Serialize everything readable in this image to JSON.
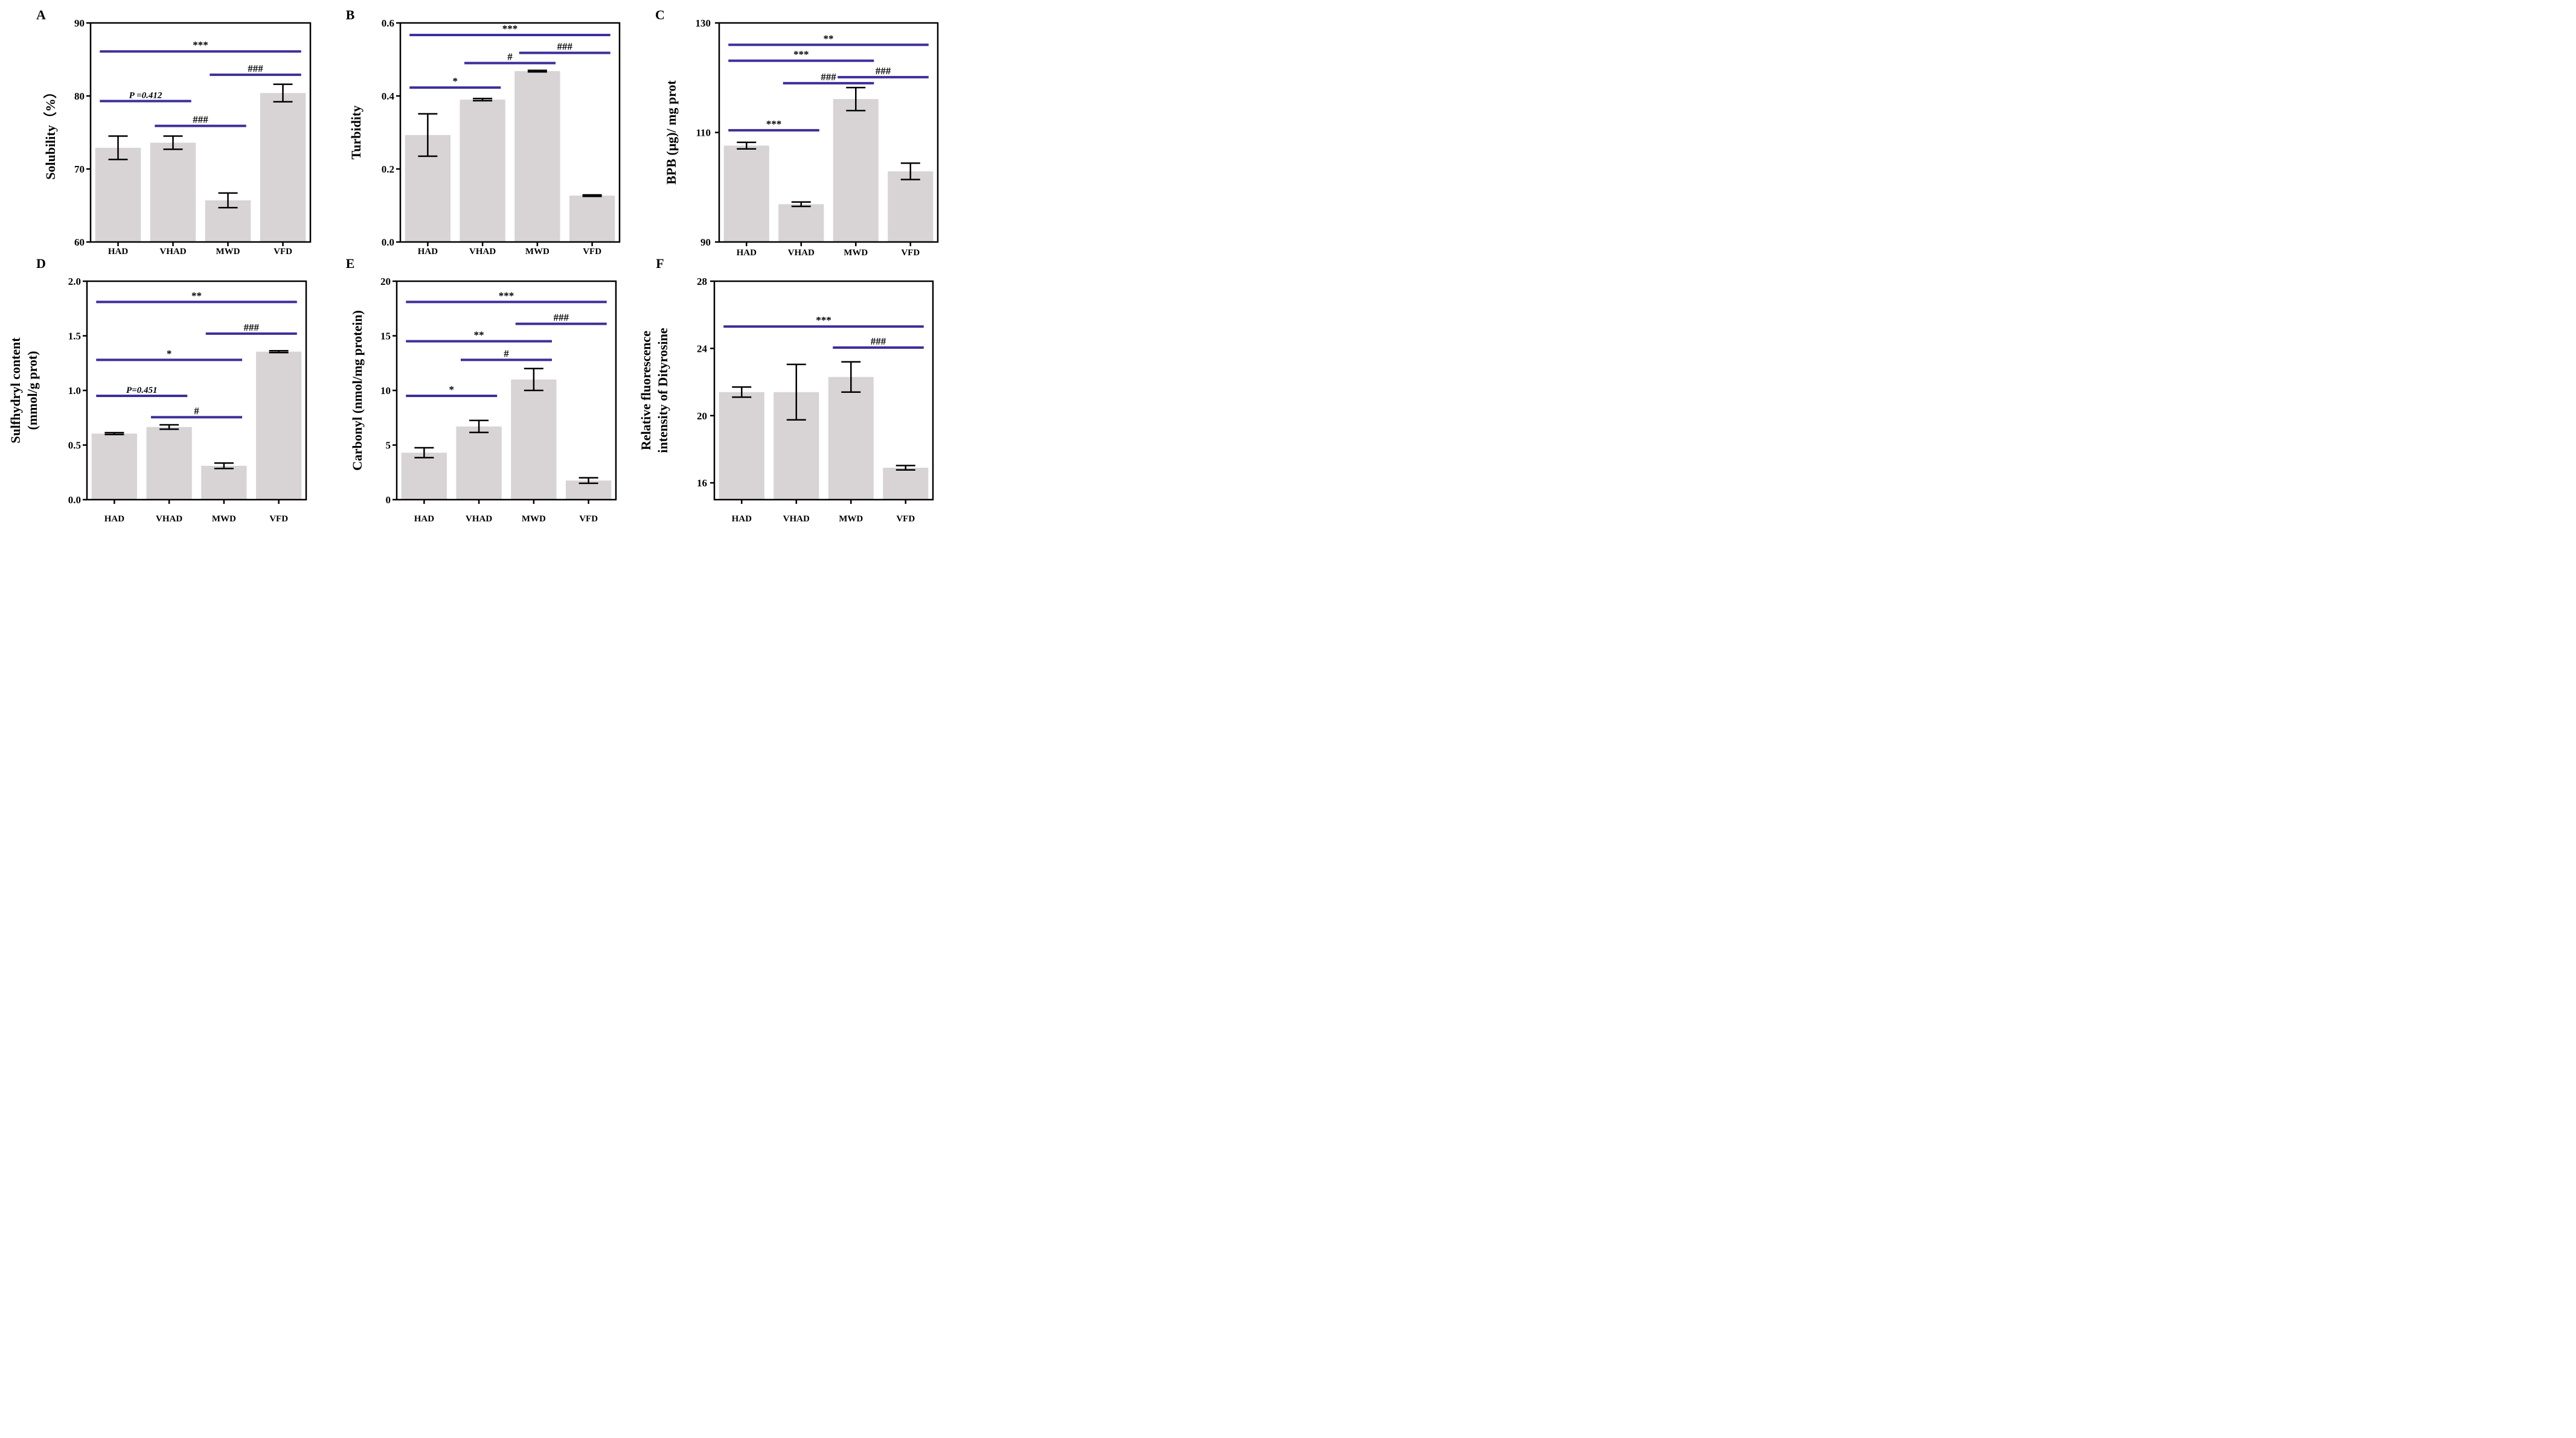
{
  "figure": {
    "bar_color": "#d8d4d6",
    "sig_color": "#3d2f9a",
    "axis_color": "#000000"
  },
  "chart_data": [
    {
      "type": "bar",
      "panel": "A",
      "ylabel": [
        "Solubility（%）"
      ],
      "categories": [
        "HAD",
        "VHAD",
        "MWD",
        "VFD"
      ],
      "values": [
        72.9,
        73.6,
        65.7,
        80.4
      ],
      "errors": [
        1.6,
        0.9,
        1.0,
        1.2
      ],
      "ylim": [
        60,
        90
      ],
      "yticks": [
        60,
        70,
        80,
        90
      ],
      "tick_labels": [
        "60",
        "70",
        "80",
        "90"
      ],
      "significance": [
        {
          "from": 0,
          "to": 3,
          "level": 86.1,
          "label": "***"
        },
        {
          "from": 2,
          "to": 3,
          "level": 82.9,
          "label": "###"
        },
        {
          "from": 0,
          "to": 1,
          "level": 79.3,
          "label": "P =0.412",
          "italic": true
        },
        {
          "from": 1,
          "to": 2,
          "level": 75.9,
          "label": "###"
        }
      ]
    },
    {
      "type": "bar",
      "panel": "B",
      "ylabel": [
        "Turbidity"
      ],
      "categories": [
        "HAD",
        "VHAD",
        "MWD",
        "VFD"
      ],
      "values": [
        0.293,
        0.39,
        0.468,
        0.127
      ],
      "errors": [
        0.058,
        0.003,
        0.002,
        0.002
      ],
      "ylim": [
        0,
        0.6
      ],
      "yticks": [
        0,
        0.2,
        0.4,
        0.6
      ],
      "tick_labels": [
        "0.0",
        "0.2",
        "0.4",
        "0.6"
      ],
      "significance": [
        {
          "from": 0,
          "to": 3,
          "level": 0.567,
          "label": "***"
        },
        {
          "from": 2,
          "to": 3,
          "level": 0.518,
          "label": "###"
        },
        {
          "from": 1,
          "to": 2,
          "level": 0.49,
          "label": "#"
        },
        {
          "from": 0,
          "to": 1,
          "level": 0.423,
          "label": "*"
        }
      ]
    },
    {
      "type": "bar",
      "panel": "C",
      "ylabel": [
        "BPB (μg)/ mg prot"
      ],
      "categories": [
        "HAD",
        "VHAD",
        "MWD",
        "VFD"
      ],
      "values": [
        107.6,
        96.9,
        116.1,
        102.9
      ],
      "errors": [
        0.6,
        0.4,
        2.1,
        1.5
      ],
      "ylim": [
        90,
        130
      ],
      "yticks": [
        90,
        110,
        130
      ],
      "tick_labels": [
        "90",
        "110",
        "130"
      ],
      "significance": [
        {
          "from": 0,
          "to": 3,
          "level": 126.0,
          "label": "**"
        },
        {
          "from": 0,
          "to": 2,
          "level": 123.1,
          "label": "***"
        },
        {
          "from": 2,
          "to": 3,
          "level": 120.1,
          "label": "###"
        },
        {
          "from": 1,
          "to": 2,
          "level": 119.0,
          "label": "###"
        },
        {
          "from": 0,
          "to": 1,
          "level": 110.4,
          "label": "***"
        }
      ]
    },
    {
      "type": "bar",
      "panel": "D",
      "ylabel": [
        "Sulfhydryl content",
        "(mmol/g prot)"
      ],
      "categories": [
        "HAD",
        "VHAD",
        "MWD",
        "VFD"
      ],
      "values": [
        0.605,
        0.665,
        0.31,
        1.355
      ],
      "errors": [
        0.008,
        0.02,
        0.025,
        0.008
      ],
      "ylim": [
        0,
        2.0
      ],
      "yticks": [
        0,
        0.5,
        1.0,
        1.5,
        2.0
      ],
      "tick_labels": [
        "0.0",
        "0.5",
        "1.0",
        "1.5",
        "2.0"
      ],
      "significance": [
        {
          "from": 0,
          "to": 3,
          "level": 1.81,
          "label": "**"
        },
        {
          "from": 2,
          "to": 3,
          "level": 1.52,
          "label": "###"
        },
        {
          "from": 0,
          "to": 2,
          "level": 1.28,
          "label": "*"
        },
        {
          "from": 0,
          "to": 1,
          "level": 0.95,
          "label": "P=0.451",
          "italic": true
        },
        {
          "from": 1,
          "to": 2,
          "level": 0.755,
          "label": "#"
        }
      ]
    },
    {
      "type": "bar",
      "panel": "E",
      "ylabel": [
        "Carbonyl (nmol/mg protein)"
      ],
      "categories": [
        "HAD",
        "VHAD",
        "MWD",
        "VFD"
      ],
      "values": [
        4.3,
        6.7,
        11.0,
        1.75
      ],
      "errors": [
        0.45,
        0.55,
        1.0,
        0.25
      ],
      "ylim": [
        0,
        20
      ],
      "yticks": [
        0,
        5,
        10,
        15,
        20
      ],
      "tick_labels": [
        "0",
        "5",
        "10",
        "15",
        "20"
      ],
      "significance": [
        {
          "from": 0,
          "to": 3,
          "level": 18.1,
          "label": "***"
        },
        {
          "from": 2,
          "to": 3,
          "level": 16.1,
          "label": "###"
        },
        {
          "from": 0,
          "to": 2,
          "level": 14.5,
          "label": "**"
        },
        {
          "from": 1,
          "to": 2,
          "level": 12.8,
          "label": "#"
        },
        {
          "from": 0,
          "to": 1,
          "level": 9.5,
          "label": "*"
        }
      ]
    },
    {
      "type": "bar",
      "panel": "F",
      "ylabel": [
        "Relative fluorescence",
        "intensity of Dityrosine"
      ],
      "categories": [
        "HAD",
        "VHAD",
        "MWD",
        "VFD"
      ],
      "values": [
        21.4,
        21.4,
        22.3,
        16.9
      ],
      "errors": [
        0.3,
        1.65,
        0.9,
        0.13
      ],
      "ylim": [
        15,
        28
      ],
      "yticks": [
        16,
        20,
        24,
        28
      ],
      "tick_labels": [
        "16",
        "20",
        "24",
        "28"
      ],
      "significance": [
        {
          "from": 0,
          "to": 3,
          "level": 25.3,
          "label": "***"
        },
        {
          "from": 2,
          "to": 3,
          "level": 24.05,
          "label": "###"
        }
      ]
    }
  ]
}
